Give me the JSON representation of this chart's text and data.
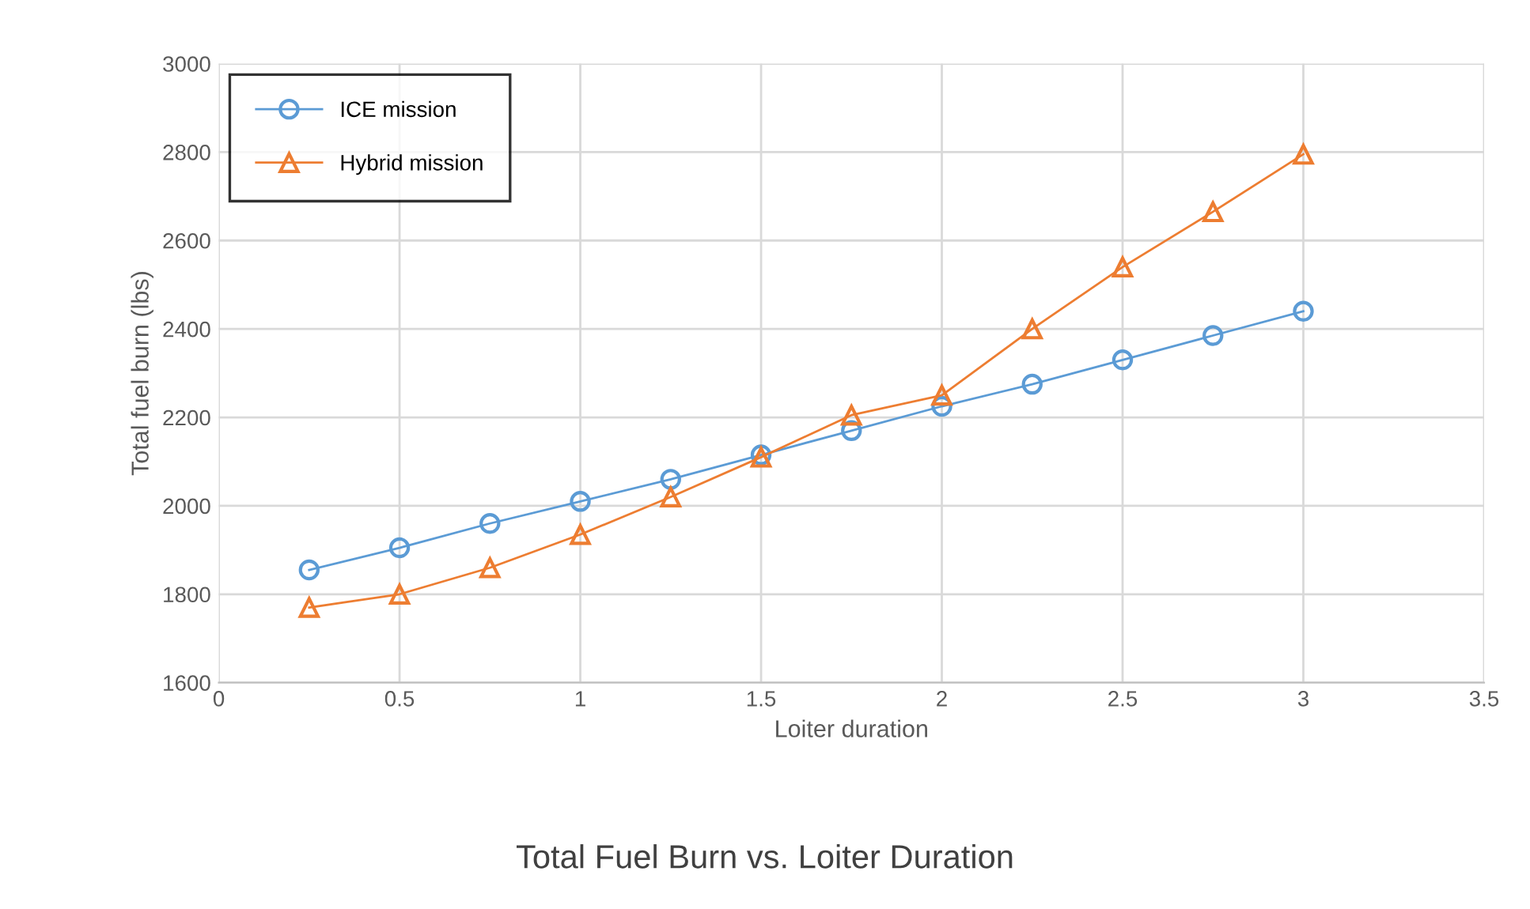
{
  "chart_data": {
    "type": "line",
    "title": "Total Fuel Burn vs. Loiter Duration",
    "xlabel": "Loiter duration",
    "ylabel": "Total fuel burn (lbs)",
    "x": [
      0.25,
      0.5,
      0.75,
      1,
      1.25,
      1.5,
      1.75,
      2,
      2.25,
      2.5,
      2.75,
      3
    ],
    "series": [
      {
        "name": "ICE mission",
        "color": "#5b9bd5",
        "marker": "circle",
        "values": [
          1855,
          1905,
          1960,
          2010,
          2060,
          2115,
          2170,
          2225,
          2275,
          2330,
          2385,
          2440
        ]
      },
      {
        "name": "Hybrid mission",
        "color": "#ed7d31",
        "marker": "triangle",
        "values": [
          1770,
          1800,
          1860,
          1935,
          2020,
          2110,
          2205,
          2250,
          2400,
          2540,
          2665,
          2795
        ]
      }
    ],
    "xlim": [
      0,
      3.5
    ],
    "xticks": [
      0,
      0.5,
      1,
      1.5,
      2,
      2.5,
      3,
      3.5
    ],
    "ylim": [
      1600,
      3000
    ],
    "yticks": [
      1600,
      1800,
      2000,
      2200,
      2400,
      2600,
      2800,
      3000
    ],
    "grid": true,
    "legend": "top left",
    "line_style": "solid"
  }
}
